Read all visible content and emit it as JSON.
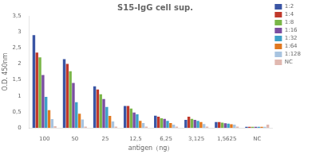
{
  "chart_data": {
    "type": "bar",
    "title": "S15-IgG cell sup.",
    "xlabel": "antigen（ng）",
    "ylabel": "O.D. 450nm",
    "categories": [
      "100",
      "50",
      "25",
      "12,5",
      "6,25",
      "3,125",
      "1,5625",
      "NC"
    ],
    "series": [
      {
        "name": "1:2",
        "color": "#3a55a4",
        "values": [
          2.9,
          2.15,
          1.3,
          0.68,
          0.38,
          0.25,
          0.18,
          0.03
        ]
      },
      {
        "name": "1:4",
        "color": "#c0392b",
        "values": [
          2.35,
          2.0,
          1.2,
          0.68,
          0.35,
          0.35,
          0.18,
          0.03
        ]
      },
      {
        "name": "1:8",
        "color": "#7ab648",
        "values": [
          2.2,
          1.77,
          1.05,
          0.6,
          0.3,
          0.28,
          0.16,
          0.03
        ]
      },
      {
        "name": "1:16",
        "color": "#7b4ea0",
        "values": [
          1.65,
          1.4,
          0.9,
          0.48,
          0.28,
          0.25,
          0.14,
          0.03
        ]
      },
      {
        "name": "1:32",
        "color": "#3ea0c8",
        "values": [
          0.97,
          0.8,
          0.65,
          0.42,
          0.22,
          0.22,
          0.13,
          0.03
        ]
      },
      {
        "name": "1:64",
        "color": "#e07820",
        "values": [
          0.55,
          0.44,
          0.37,
          0.22,
          0.15,
          0.18,
          0.11,
          0.03
        ]
      },
      {
        "name": "1:128",
        "color": "#a8c4e0",
        "values": [
          0.27,
          0.26,
          0.2,
          0.15,
          0.1,
          0.12,
          0.1,
          0.03
        ]
      },
      {
        "name": "NC",
        "color": "#e0b8b0",
        "values": [
          0.05,
          0.04,
          0.04,
          0.04,
          0.04,
          0.04,
          0.04,
          0.1
        ]
      }
    ],
    "ylim": [
      0,
      3.5
    ],
    "yticks": [
      0,
      {
        "value": 0.5,
        "label": "0,5"
      },
      1,
      {
        "value": 1.5,
        "label": "1,5"
      },
      2,
      {
        "value": 2.5,
        "label": "2,5"
      },
      3,
      {
        "value": 3.5,
        "label": "3,5"
      }
    ],
    "grid": false,
    "legend": "right"
  }
}
